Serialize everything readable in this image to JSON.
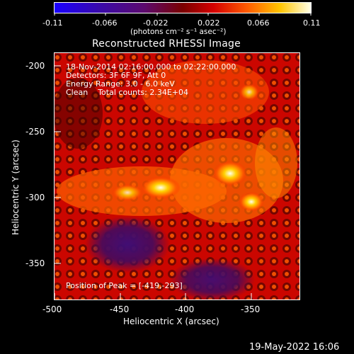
{
  "colorbar": {
    "tick_labels": [
      "-0.11",
      "-0.066",
      "-0.022",
      "0.022",
      "0.066",
      "0.11"
    ],
    "unit_label": "(photons cm⁻² s⁻¹ asec⁻²)"
  },
  "image": {
    "title": "Reconstructed RHESSI Image",
    "info_lines": [
      "18-Nov-2014 02:16:00.000 to 02:22:00.000",
      "Detectors: 3F 6F 9F, Att 0",
      "Energy Range: 3.0 - 6.0 keV",
      "Clean    Total counts: 2.34E+04"
    ],
    "peak_text": "Position of Peak = [-419,-293]"
  },
  "axes": {
    "x_label": "Heliocentric X (arcsec)",
    "y_label": "Heliocentric Y (arcsec)",
    "x_ticks": [
      "-500",
      "-450",
      "-400",
      "-350"
    ],
    "y_ticks": [
      "-200",
      "-250",
      "-300",
      "-350"
    ]
  },
  "footer": {
    "date": "19-May-2022 16:06"
  }
}
